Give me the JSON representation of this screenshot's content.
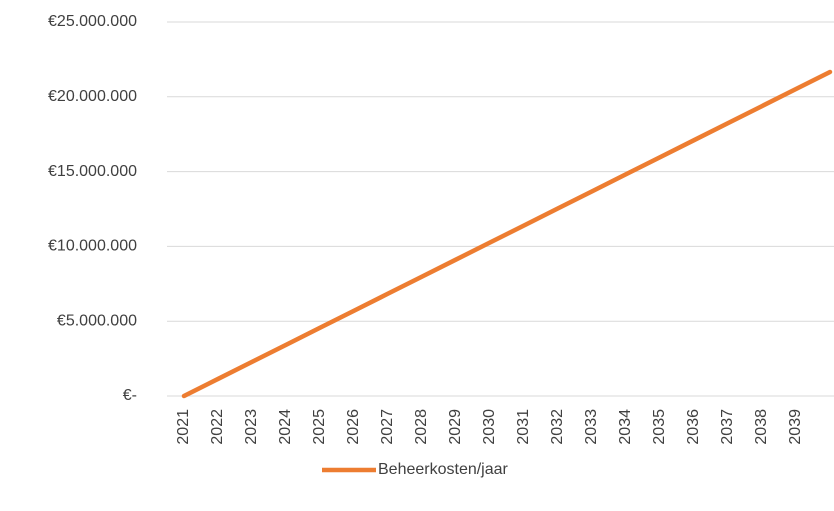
{
  "chart_data": {
    "type": "line",
    "categories": [
      "2021",
      "2022",
      "2023",
      "2024",
      "2025",
      "2026",
      "2027",
      "2028",
      "2029",
      "2030",
      "2031",
      "2032",
      "2033",
      "2034",
      "2035",
      "2036",
      "2037",
      "2038",
      "2039",
      null
    ],
    "series": [
      {
        "name": "Beheerkosten/jaar",
        "color": "#ed7d31",
        "values": [
          0,
          1140000,
          2280000,
          3420000,
          4560000,
          5700000,
          6840000,
          7980000,
          9120000,
          10260000,
          11400000,
          12540000,
          13680000,
          14820000,
          15960000,
          17100000,
          18240000,
          19380000,
          20520000,
          21660000
        ]
      }
    ],
    "ylim": [
      0,
      25000000
    ],
    "yticks": [
      {
        "value": 0,
        "label": "€-"
      },
      {
        "value": 5000000,
        "label": "€5.000.000"
      },
      {
        "value": 10000000,
        "label": "€10.000.000"
      },
      {
        "value": 15000000,
        "label": "€15.000.000"
      },
      {
        "value": 20000000,
        "label": "€20.000.000"
      },
      {
        "value": 25000000,
        "label": "€25.000.000"
      }
    ],
    "grid": true,
    "legend": "bottom"
  }
}
